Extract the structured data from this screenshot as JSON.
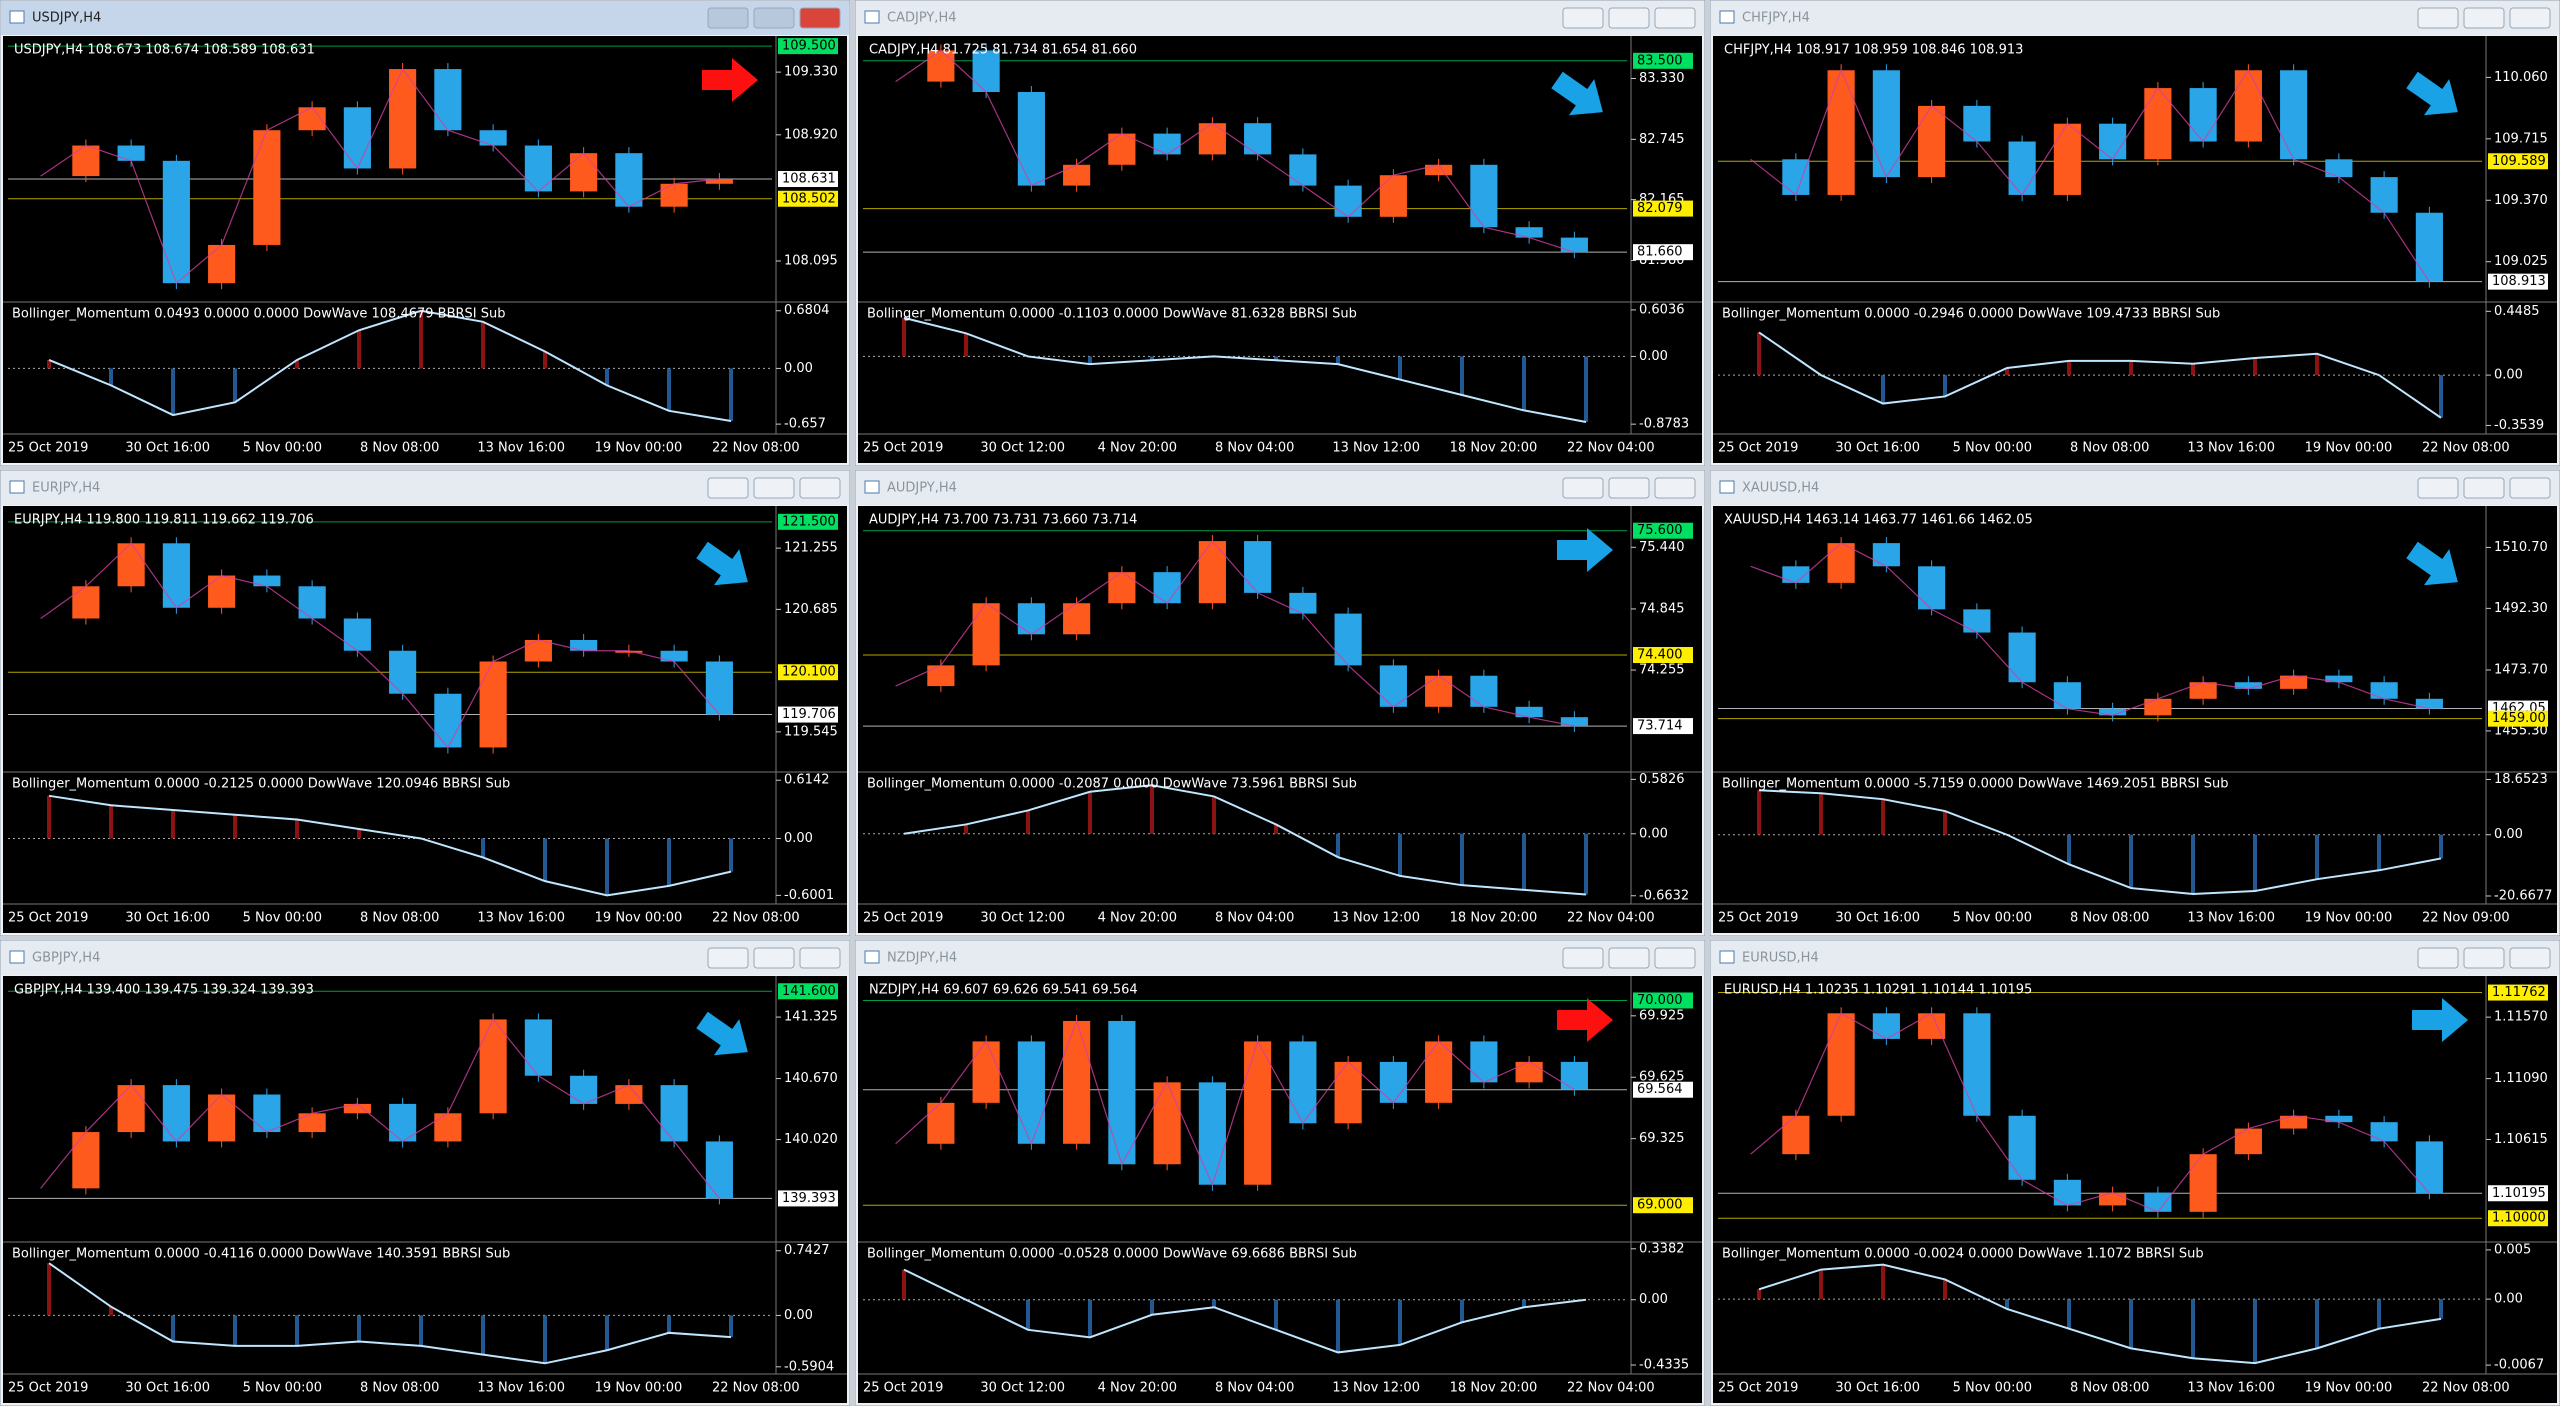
{
  "windows": [
    {
      "title": "USDJPY,H4",
      "active": true,
      "header": "USDJPY,H4  108.673 108.674 108.589 108.631",
      "ylim": [
        107.84,
        109.54
      ],
      "price_scale": [
        {
          "value": 109.33,
          "label": "109.330"
        },
        {
          "value": 108.92,
          "label": "108.920"
        },
        {
          "value": 108.095,
          "label": "108.095"
        }
      ],
      "price_tags": [
        {
          "value": 109.5,
          "label": "109.500",
          "color": "#00e060"
        },
        {
          "value": 108.631,
          "label": "108.631",
          "color": "#ffffff"
        },
        {
          "value": 108.502,
          "label": "108.502",
          "color": "#ffee00"
        }
      ],
      "closes": [
        108.65,
        108.85,
        108.75,
        107.95,
        108.2,
        108.95,
        109.1,
        108.7,
        109.35,
        108.95,
        108.85,
        108.55,
        108.8,
        108.45,
        108.6,
        108.631
      ],
      "indicator": "Bollinger_Momentum 0.0493 0.0000 0.0000  DowWave 108.4679  BBRSI Sub",
      "sub_ylim": [
        -0.75,
        0.76
      ],
      "sub_scale": [
        0.6804,
        {
          "value": 0,
          "label": "0.00"
        },
        -0.657
      ],
      "momentum": [
        0.1,
        -0.2,
        -0.55,
        -0.4,
        0.1,
        0.45,
        0.68,
        0.55,
        0.2,
        -0.2,
        -0.5,
        -0.62
      ],
      "dates": [
        "25 Oct 2019",
        "30 Oct 16:00",
        "5 Nov 00:00",
        "8 Nov 08:00",
        "13 Nov 16:00",
        "19 Nov 00:00",
        "22 Nov 08:00"
      ],
      "arrow": {
        "color": "#ff1010",
        "direction": "right"
      }
    },
    {
      "title": "CADJPY,H4",
      "active": false,
      "header": "CADJPY,H4  81.725 81.734 81.654 81.660",
      "ylim": [
        81.2,
        83.7
      ],
      "price_scale": [
        {
          "value": 83.33,
          "label": "83.330"
        },
        {
          "value": 82.745,
          "label": "82.745"
        },
        {
          "value": 82.165,
          "label": "82.165"
        },
        {
          "value": 81.58,
          "label": "81.580"
        }
      ],
      "price_tags": [
        {
          "value": 83.5,
          "label": "83.500",
          "color": "#00e060"
        },
        {
          "value": 82.079,
          "label": "82.079",
          "color": "#ffee00"
        },
        {
          "value": 81.66,
          "label": "81.660",
          "color": "#ffffff"
        }
      ],
      "closes": [
        83.3,
        83.6,
        83.2,
        82.3,
        82.5,
        82.8,
        82.6,
        82.9,
        82.6,
        82.3,
        82.0,
        82.4,
        82.5,
        81.9,
        81.8,
        81.66
      ],
      "indicator": "Bollinger_Momentum 0.0000 -0.1103 0.0000  DowWave 81.6328  BBRSI Sub",
      "sub_ylim": [
        -0.98,
        0.68
      ],
      "sub_scale": [
        0.6036,
        {
          "value": 0,
          "label": "0.00"
        },
        -0.8783
      ],
      "momentum": [
        0.5,
        0.3,
        0.0,
        -0.1,
        -0.05,
        0.0,
        -0.05,
        -0.1,
        -0.3,
        -0.5,
        -0.7,
        -0.85
      ],
      "dates": [
        "25 Oct 2019",
        "30 Oct 12:00",
        "4 Nov 20:00",
        "8 Nov 04:00",
        "13 Nov 12:00",
        "18 Nov 20:00",
        "22 Nov 04:00"
      ],
      "arrow": {
        "color": "#19a3e6",
        "direction": "down-right"
      }
    },
    {
      "title": "CHFJPY,H4",
      "active": false,
      "header": "CHFJPY,H4  108.917 108.959 108.846 108.913",
      "ylim": [
        108.81,
        110.27
      ],
      "price_scale": [
        {
          "value": 110.06,
          "label": "110.060"
        },
        {
          "value": 109.715,
          "label": "109.715"
        },
        {
          "value": 109.37,
          "label": "109.370"
        },
        {
          "value": 109.025,
          "label": "109.025"
        }
      ],
      "price_tags": [
        {
          "value": 109.589,
          "label": "109.589",
          "color": "#ffee00"
        },
        {
          "value": 108.913,
          "label": "108.913",
          "color": "#ffffff"
        }
      ],
      "closes": [
        109.6,
        109.4,
        110.1,
        109.5,
        109.9,
        109.7,
        109.4,
        109.8,
        109.6,
        110.0,
        109.7,
        110.1,
        109.6,
        109.5,
        109.3,
        108.913
      ],
      "indicator": "Bollinger_Momentum 0.0000 -0.2946 0.0000  DowWave 109.4733  BBRSI Sub",
      "sub_ylim": [
        -0.4,
        0.5
      ],
      "sub_scale": [
        0.4485,
        {
          "value": 0,
          "label": "0.00"
        },
        -0.3539
      ],
      "momentum": [
        0.3,
        0.0,
        -0.2,
        -0.15,
        0.05,
        0.1,
        0.1,
        0.08,
        0.12,
        0.15,
        0.0,
        -0.3
      ],
      "dates": [
        "25 Oct 2019",
        "30 Oct 16:00",
        "5 Nov 00:00",
        "8 Nov 08:00",
        "13 Nov 16:00",
        "19 Nov 00:00",
        "22 Nov 08:00"
      ],
      "arrow": {
        "color": "#19a3e6",
        "direction": "down-right"
      }
    },
    {
      "title": "EURJPY,H4",
      "active": false,
      "header": "EURJPY,H4  119.800 119.811 119.662 119.706",
      "ylim": [
        119.19,
        121.61
      ],
      "price_scale": [
        {
          "value": 121.255,
          "label": "121.255"
        },
        {
          "value": 120.685,
          "label": "120.685"
        },
        {
          "value": 119.545,
          "label": "119.545"
        }
      ],
      "price_tags": [
        {
          "value": 121.5,
          "label": "121.500",
          "color": "#00e060"
        },
        {
          "value": 120.1,
          "label": "120.100",
          "color": "#ffee00"
        },
        {
          "value": 119.706,
          "label": "119.706",
          "color": "#ffffff"
        }
      ],
      "closes": [
        120.6,
        120.9,
        121.3,
        120.7,
        121.0,
        120.9,
        120.6,
        120.3,
        119.9,
        119.4,
        120.2,
        120.4,
        120.3,
        120.3,
        120.2,
        119.706
      ],
      "indicator": "Bollinger_Momentum 0.0000 -0.2125 0.0000  DowWave 120.0946  BBRSI Sub",
      "sub_ylim": [
        -0.67,
        0.68
      ],
      "sub_scale": [
        0.6142,
        {
          "value": 0,
          "label": "0.00"
        },
        -0.6001
      ],
      "momentum": [
        0.45,
        0.35,
        0.3,
        0.25,
        0.2,
        0.1,
        0.0,
        -0.2,
        -0.45,
        -0.6,
        -0.5,
        -0.35
      ],
      "dates": [
        "25 Oct 2019",
        "30 Oct 16:00",
        "5 Nov 00:00",
        "8 Nov 08:00",
        "13 Nov 16:00",
        "19 Nov 00:00",
        "22 Nov 08:00"
      ],
      "arrow": {
        "color": "#19a3e6",
        "direction": "down-right"
      }
    },
    {
      "title": "AUDJPY,H4",
      "active": false,
      "header": "AUDJPY,H4  73.700 73.731 73.660 73.714",
      "ylim": [
        73.29,
        75.8
      ],
      "price_scale": [
        {
          "value": 75.44,
          "label": "75.440"
        },
        {
          "value": 74.845,
          "label": "74.845"
        },
        {
          "value": 74.255,
          "label": "74.255"
        }
      ],
      "price_tags": [
        {
          "value": 75.6,
          "label": "75.600",
          "color": "#00e060"
        },
        {
          "value": 74.4,
          "label": "74.400",
          "color": "#ffee00"
        },
        {
          "value": 73.714,
          "label": "73.714",
          "color": "#ffffff"
        }
      ],
      "closes": [
        74.1,
        74.3,
        74.9,
        74.6,
        74.9,
        75.2,
        74.9,
        75.5,
        75.0,
        74.8,
        74.3,
        73.9,
        74.2,
        73.9,
        73.8,
        73.714
      ],
      "indicator": "Bollinger_Momentum 0.0000 -0.2087 0.0000  DowWave 73.5961  BBRSI Sub",
      "sub_ylim": [
        -0.73,
        0.64
      ],
      "sub_scale": [
        0.5826,
        {
          "value": 0,
          "label": "0.00"
        },
        -0.6632
      ],
      "momentum": [
        0.0,
        0.1,
        0.25,
        0.45,
        0.52,
        0.4,
        0.1,
        -0.25,
        -0.45,
        -0.55,
        -0.6,
        -0.65
      ],
      "dates": [
        "25 Oct 2019",
        "30 Oct 12:00",
        "4 Nov 20:00",
        "8 Nov 04:00",
        "13 Nov 12:00",
        "18 Nov 20:00",
        "22 Nov 04:00"
      ],
      "arrow": {
        "color": "#19a3e6",
        "direction": "right"
      }
    },
    {
      "title": "XAUUSD,H4",
      "active": false,
      "header": "XAUUSD,H4  1463.14 1463.77 1461.66 1462.05",
      "ylim": [
        1443.5,
        1522
      ],
      "price_scale": [
        {
          "value": 1510.7,
          "label": "1510.70"
        },
        {
          "value": 1492.3,
          "label": "1492.30"
        },
        {
          "value": 1473.7,
          "label": "1473.70"
        },
        {
          "value": 1455.3,
          "label": "1455.30"
        }
      ],
      "price_tags": [
        {
          "value": 1462.05,
          "label": "1462.05",
          "color": "#ffffff"
        },
        {
          "value": 1459,
          "label": "1459.00",
          "color": "#ffee00"
        }
      ],
      "closes": [
        1505,
        1500,
        1512,
        1505,
        1492,
        1485,
        1470,
        1462,
        1460,
        1465,
        1470,
        1468,
        1472,
        1470,
        1465,
        1462.05
      ],
      "indicator": "Bollinger_Momentum 0.0000 -5.7159 0.0000  DowWave 1469.2051  BBRSI Sub",
      "sub_ylim": [
        -22.7,
        20.5
      ],
      "sub_scale": [
        18.6523,
        {
          "value": 0,
          "label": "0.00"
        },
        -20.6677
      ],
      "momentum": [
        15,
        14,
        12,
        8,
        0,
        -10,
        -18,
        -20,
        -19,
        -15,
        -12,
        -8
      ],
      "dates": [
        "25 Oct 2019",
        "30 Oct 16:00",
        "5 Nov 00:00",
        "8 Nov 08:00",
        "13 Nov 16:00",
        "19 Nov 00:00",
        "22 Nov 09:00"
      ],
      "arrow": {
        "color": "#19a3e6",
        "direction": "down-right"
      }
    },
    {
      "title": "GBPJPY,H4",
      "active": false,
      "header": "GBPJPY,H4  139.400 139.475 139.324 139.393",
      "ylim": [
        138.95,
        141.72
      ],
      "price_scale": [
        {
          "value": 141.325,
          "label": "141.325"
        },
        {
          "value": 140.67,
          "label": "140.670"
        },
        {
          "value": 140.02,
          "label": "140.020"
        }
      ],
      "price_tags": [
        {
          "value": 141.6,
          "label": "141.600",
          "color": "#00e060"
        },
        {
          "value": 139.393,
          "label": "139.393",
          "color": "#ffffff"
        }
      ],
      "closes": [
        139.5,
        140.1,
        140.6,
        140.0,
        140.5,
        140.1,
        140.3,
        140.4,
        140.0,
        140.3,
        141.3,
        140.7,
        140.4,
        140.6,
        140.0,
        139.393
      ],
      "indicator": "Bollinger_Momentum 0.0000 -0.4116 0.0000  DowWave 140.3591  BBRSI Sub",
      "sub_ylim": [
        -0.65,
        0.82
      ],
      "sub_scale": [
        0.7427,
        {
          "value": 0,
          "label": "0.00"
        },
        -0.5904
      ],
      "momentum": [
        0.6,
        0.1,
        -0.3,
        -0.35,
        -0.35,
        -0.3,
        -0.35,
        -0.45,
        -0.55,
        -0.4,
        -0.2,
        -0.25
      ],
      "dates": [
        "25 Oct 2019",
        "30 Oct 16:00",
        "5 Nov 00:00",
        "8 Nov 08:00",
        "13 Nov 16:00",
        "19 Nov 00:00",
        "22 Nov 08:00"
      ],
      "arrow": {
        "color": "#19a3e6",
        "direction": "down-right"
      }
    },
    {
      "title": "NZDJPY,H4",
      "active": false,
      "header": "NZDJPY,H4  69.607 69.626 69.541 69.564",
      "ylim": [
        68.83,
        70.1
      ],
      "price_scale": [
        {
          "value": 69.925,
          "label": "69.925"
        },
        {
          "value": 69.625,
          "label": "69.625"
        },
        {
          "value": 69.325,
          "label": "69.325"
        }
      ],
      "price_tags": [
        {
          "value": 70,
          "label": "70.000",
          "color": "#00e060"
        },
        {
          "value": 69.564,
          "label": "69.564",
          "color": "#ffffff"
        },
        {
          "value": 69,
          "label": "69.000",
          "color": "#ffee00"
        }
      ],
      "closes": [
        69.3,
        69.5,
        69.8,
        69.3,
        69.9,
        69.2,
        69.6,
        69.1,
        69.8,
        69.4,
        69.7,
        69.5,
        69.8,
        69.6,
        69.7,
        69.564
      ],
      "indicator": "Bollinger_Momentum 0.0000 -0.0528 0.0000  DowWave 69.6686  BBRSI Sub",
      "sub_ylim": [
        -0.48,
        0.37
      ],
      "sub_scale": [
        0.3382,
        {
          "value": 0,
          "label": "0.00"
        },
        -0.4335
      ],
      "momentum": [
        0.2,
        0.0,
        -0.2,
        -0.25,
        -0.1,
        -0.05,
        -0.2,
        -0.35,
        -0.3,
        -0.15,
        -0.05,
        0.0
      ],
      "dates": [
        "25 Oct 2019",
        "30 Oct 12:00",
        "4 Nov 20:00",
        "8 Nov 04:00",
        "13 Nov 12:00",
        "18 Nov 20:00",
        "22 Nov 04:00"
      ],
      "arrow": {
        "color": "#ff1010",
        "direction": "right"
      }
    },
    {
      "title": "EURUSD,H4",
      "active": false,
      "header": "EURUSD,H4  1.10235 1.10291 1.10144 1.10195",
      "ylim": [
        1.0983,
        1.1186
      ],
      "price_scale": [
        {
          "value": 1.1157,
          "label": "1.11570"
        },
        {
          "value": 1.1109,
          "label": "1.11090"
        },
        {
          "value": 1.10615,
          "label": "1.10615"
        }
      ],
      "price_tags": [
        {
          "value": 1.11762,
          "label": "1.11762",
          "color": "#ffee00"
        },
        {
          "value": 1.10195,
          "label": "1.10195",
          "color": "#ffffff"
        },
        {
          "value": 1.1,
          "label": "1.10000",
          "color": "#ffee00"
        }
      ],
      "closes": [
        1.105,
        1.108,
        1.116,
        1.114,
        1.116,
        1.108,
        1.103,
        1.101,
        1.102,
        1.1005,
        1.105,
        1.107,
        1.108,
        1.1075,
        1.106,
        1.10195
      ],
      "indicator": "Bollinger_Momentum 0.0000 -0.0024 0.0000  DowWave 1.1072  BBRSI Sub",
      "sub_ylim": [
        -0.0074,
        0.0056
      ],
      "sub_scale": [
        0.005,
        {
          "value": 0,
          "label": "0.00"
        },
        -0.0067
      ],
      "momentum": [
        0.001,
        0.003,
        0.0035,
        0.002,
        -0.001,
        -0.003,
        -0.005,
        -0.006,
        -0.0065,
        -0.005,
        -0.003,
        -0.002
      ],
      "dates": [
        "25 Oct 2019",
        "30 Oct 16:00",
        "5 Nov 00:00",
        "8 Nov 08:00",
        "13 Nov 16:00",
        "19 Nov 00:00",
        "22 Nov 08:00"
      ],
      "arrow": {
        "color": "#19a3e6",
        "direction": "right"
      }
    }
  ]
}
